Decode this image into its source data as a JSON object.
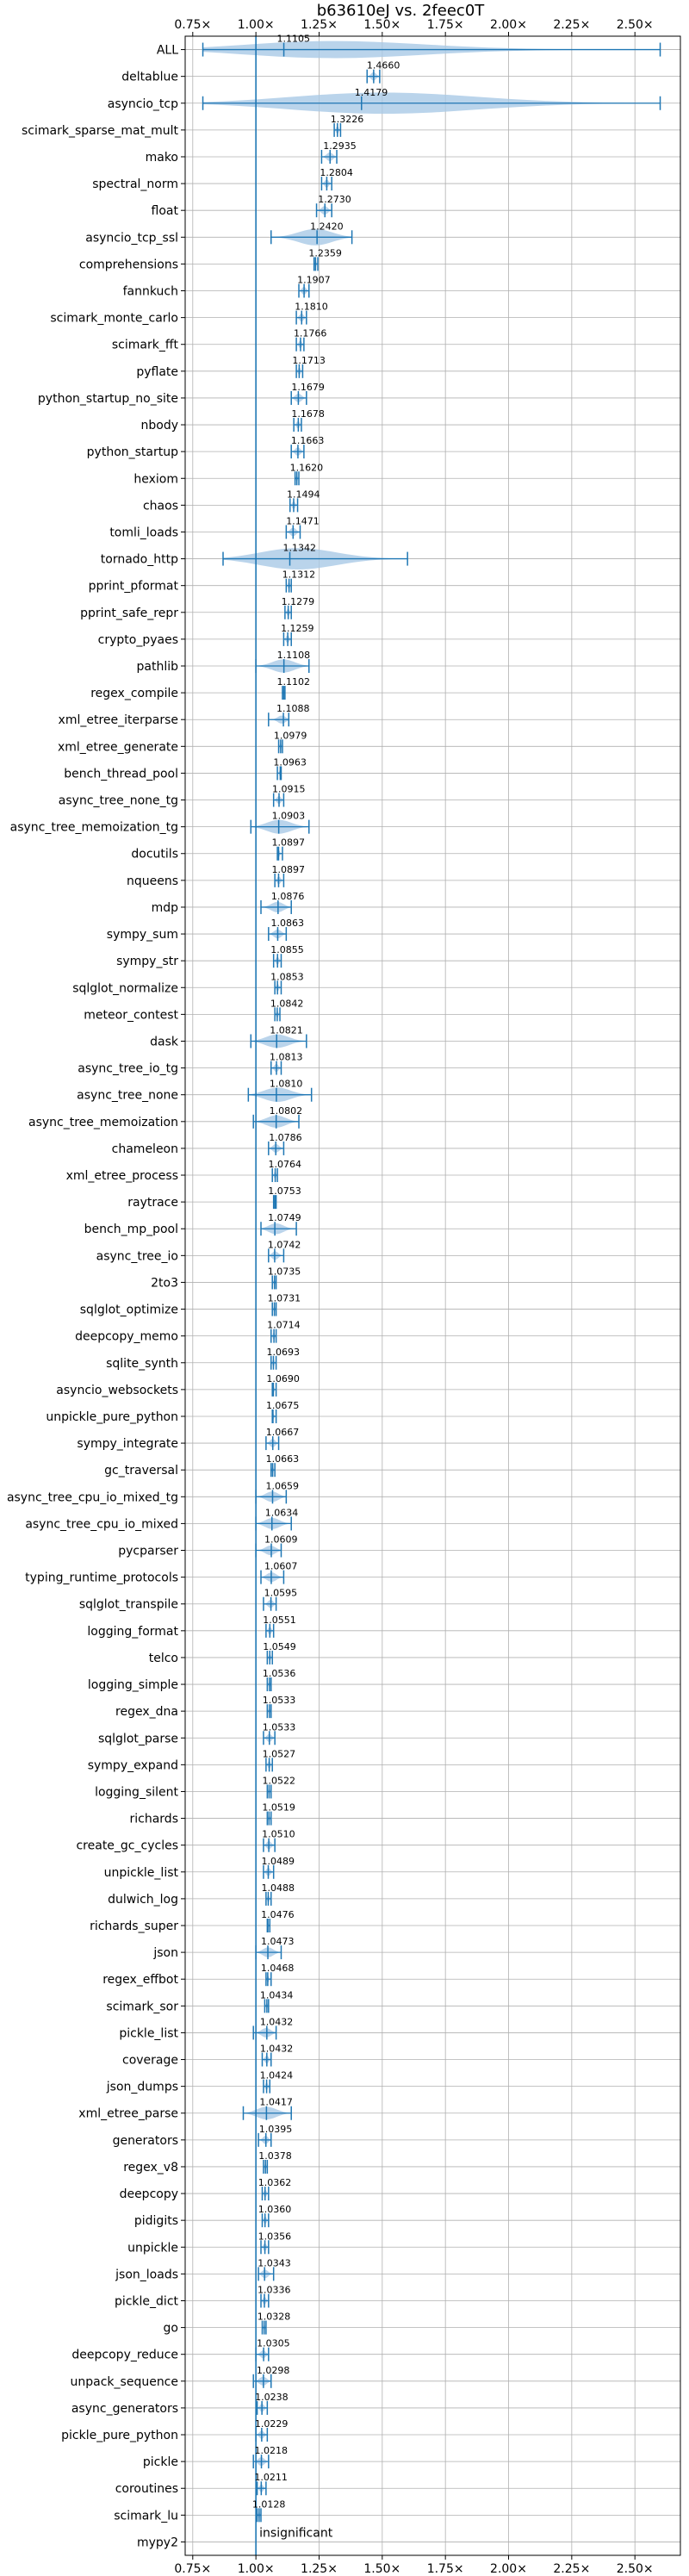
{
  "chart_data": {
    "type": "violin",
    "title": "b63610eJ vs. 2feec0T",
    "xlabel": "",
    "ylabel": "",
    "xlim": [
      0.72,
      2.68
    ],
    "xticks": [
      0.75,
      1.0,
      1.25,
      1.5,
      1.75,
      2.0,
      2.25,
      2.5
    ],
    "xtick_labels": [
      "0.75×",
      "1.00×",
      "1.25×",
      "1.50×",
      "1.75×",
      "2.00×",
      "2.25×",
      "2.50×"
    ],
    "reference_line": 1.0,
    "grid": true,
    "colors": {
      "violin": "#a9c9e6",
      "line": "#1f77b4"
    },
    "categories": [
      "ALL",
      "deltablue",
      "asyncio_tcp",
      "scimark_sparse_mat_mult",
      "mako",
      "spectral_norm",
      "float",
      "asyncio_tcp_ssl",
      "comprehensions",
      "fannkuch",
      "scimark_monte_carlo",
      "scimark_fft",
      "pyflate",
      "python_startup_no_site",
      "nbody",
      "python_startup",
      "hexiom",
      "chaos",
      "tomli_loads",
      "tornado_http",
      "pprint_pformat",
      "pprint_safe_repr",
      "crypto_pyaes",
      "pathlib",
      "regex_compile",
      "xml_etree_iterparse",
      "xml_etree_generate",
      "bench_thread_pool",
      "async_tree_none_tg",
      "async_tree_memoization_tg",
      "docutils",
      "nqueens",
      "mdp",
      "sympy_sum",
      "sympy_str",
      "sqlglot_normalize",
      "meteor_contest",
      "dask",
      "async_tree_io_tg",
      "async_tree_none",
      "async_tree_memoization",
      "chameleon",
      "xml_etree_process",
      "raytrace",
      "bench_mp_pool",
      "async_tree_io",
      "2to3",
      "sqlglot_optimize",
      "deepcopy_memo",
      "sqlite_synth",
      "asyncio_websockets",
      "unpickle_pure_python",
      "sympy_integrate",
      "gc_traversal",
      "async_tree_cpu_io_mixed_tg",
      "async_tree_cpu_io_mixed",
      "pycparser",
      "typing_runtime_protocols",
      "sqlglot_transpile",
      "logging_format",
      "telco",
      "logging_simple",
      "regex_dna",
      "sqlglot_parse",
      "sympy_expand",
      "logging_silent",
      "richards",
      "create_gc_cycles",
      "unpickle_list",
      "dulwich_log",
      "richards_super",
      "json",
      "regex_effbot",
      "scimark_sor",
      "pickle_list",
      "coverage",
      "json_dumps",
      "xml_etree_parse",
      "generators",
      "regex_v8",
      "deepcopy",
      "pidigits",
      "unpickle",
      "json_loads",
      "pickle_dict",
      "go",
      "deepcopy_reduce",
      "unpack_sequence",
      "async_generators",
      "pickle_pure_python",
      "pickle",
      "coroutines",
      "scimark_lu",
      "mypy2"
    ],
    "value_labels": [
      "1.1105",
      "1.4660",
      "1.4179",
      "1.3226",
      "1.2935",
      "1.2804",
      "1.2730",
      "1.2420",
      "1.2359",
      "1.1907",
      "1.1810",
      "1.1766",
      "1.1713",
      "1.1679",
      "1.1678",
      "1.1663",
      "1.1620",
      "1.1494",
      "1.1471",
      "1.1342",
      "1.1312",
      "1.1279",
      "1.1259",
      "1.1108",
      "1.1102",
      "1.1088",
      "1.0979",
      "1.0963",
      "1.0915",
      "1.0903",
      "1.0897",
      "1.0897",
      "1.0876",
      "1.0863",
      "1.0855",
      "1.0853",
      "1.0842",
      "1.0821",
      "1.0813",
      "1.0810",
      "1.0802",
      "1.0786",
      "1.0764",
      "1.0753",
      "1.0749",
      "1.0742",
      "1.0735",
      "1.0731",
      "1.0714",
      "1.0693",
      "1.0690",
      "1.0675",
      "1.0667",
      "1.0663",
      "1.0659",
      "1.0634",
      "1.0609",
      "1.0607",
      "1.0595",
      "1.0551",
      "1.0549",
      "1.0536",
      "1.0533",
      "1.0533",
      "1.0527",
      "1.0522",
      "1.0519",
      "1.0510",
      "1.0489",
      "1.0488",
      "1.0476",
      "1.0473",
      "1.0468",
      "1.0434",
      "1.0432",
      "1.0432",
      "1.0424",
      "1.0417",
      "1.0395",
      "1.0378",
      "1.0362",
      "1.0360",
      "1.0356",
      "1.0343",
      "1.0336",
      "1.0328",
      "1.0305",
      "1.0298",
      "1.0238",
      "1.0229",
      "1.0218",
      "1.0211",
      "1.0128",
      ""
    ],
    "medians": [
      1.1105,
      1.466,
      1.4179,
      1.3226,
      1.2935,
      1.2804,
      1.273,
      1.242,
      1.2359,
      1.1907,
      1.181,
      1.1766,
      1.1713,
      1.1679,
      1.1678,
      1.1663,
      1.162,
      1.1494,
      1.1471,
      1.1342,
      1.1312,
      1.1279,
      1.1259,
      1.1108,
      1.1102,
      1.1088,
      1.0979,
      1.0963,
      1.0915,
      1.0903,
      1.0897,
      1.0897,
      1.0876,
      1.0863,
      1.0855,
      1.0853,
      1.0842,
      1.0821,
      1.0813,
      1.081,
      1.0802,
      1.0786,
      1.0764,
      1.0753,
      1.0749,
      1.0742,
      1.0735,
      1.0731,
      1.0714,
      1.0693,
      1.069,
      1.0675,
      1.0667,
      1.0663,
      1.0659,
      1.0634,
      1.0609,
      1.0607,
      1.0595,
      1.0551,
      1.0549,
      1.0536,
      1.0533,
      1.0533,
      1.0527,
      1.0522,
      1.0519,
      1.051,
      1.0489,
      1.0488,
      1.0476,
      1.0473,
      1.0468,
      1.0434,
      1.0432,
      1.0432,
      1.0424,
      1.0417,
      1.0395,
      1.0378,
      1.0362,
      1.036,
      1.0356,
      1.0343,
      1.0336,
      1.0328,
      1.0305,
      1.0298,
      1.0238,
      1.0229,
      1.0218,
      1.0211,
      1.0128,
      1.0
    ],
    "mins": [
      0.79,
      1.44,
      0.79,
      1.31,
      1.26,
      1.26,
      1.24,
      1.06,
      1.23,
      1.17,
      1.16,
      1.16,
      1.16,
      1.14,
      1.15,
      1.14,
      1.155,
      1.135,
      1.12,
      0.87,
      1.12,
      1.115,
      1.11,
      1.0,
      1.105,
      1.05,
      1.09,
      1.085,
      1.07,
      0.98,
      1.085,
      1.075,
      1.02,
      1.05,
      1.07,
      1.075,
      1.075,
      0.98,
      1.06,
      0.97,
      0.99,
      1.05,
      1.065,
      1.07,
      1.02,
      1.05,
      1.065,
      1.065,
      1.06,
      1.06,
      1.065,
      1.065,
      1.04,
      1.06,
      1.0,
      1.0,
      1.0,
      1.02,
      1.03,
      1.04,
      1.045,
      1.045,
      1.045,
      1.03,
      1.04,
      1.045,
      1.045,
      1.03,
      1.03,
      1.04,
      1.045,
      1.0,
      1.04,
      1.035,
      0.99,
      1.025,
      1.03,
      0.95,
      1.01,
      1.03,
      1.025,
      1.025,
      1.02,
      1.01,
      1.02,
      1.025,
      1.0,
      0.99,
      1.005,
      1.0,
      0.99,
      1.005,
      1.005,
      1.0
    ],
    "maxes": [
      2.6,
      1.49,
      2.6,
      1.335,
      1.32,
      1.3,
      1.3,
      1.38,
      1.245,
      1.21,
      1.2,
      1.19,
      1.185,
      1.2,
      1.18,
      1.19,
      1.17,
      1.165,
      1.175,
      1.6,
      1.14,
      1.14,
      1.14,
      1.21,
      1.115,
      1.13,
      1.105,
      1.1,
      1.11,
      1.21,
      1.105,
      1.11,
      1.14,
      1.12,
      1.1,
      1.1,
      1.095,
      1.2,
      1.1,
      1.22,
      1.17,
      1.11,
      1.085,
      1.08,
      1.16,
      1.11,
      1.08,
      1.08,
      1.08,
      1.08,
      1.08,
      1.08,
      1.09,
      1.075,
      1.12,
      1.14,
      1.1,
      1.11,
      1.08,
      1.07,
      1.065,
      1.06,
      1.06,
      1.075,
      1.065,
      1.06,
      1.06,
      1.075,
      1.07,
      1.06,
      1.055,
      1.1,
      1.06,
      1.05,
      1.08,
      1.06,
      1.055,
      1.14,
      1.06,
      1.045,
      1.05,
      1.05,
      1.05,
      1.07,
      1.05,
      1.04,
      1.05,
      1.06,
      1.045,
      1.045,
      1.05,
      1.04,
      1.02,
      1.0
    ],
    "annotations": [
      {
        "category": "mypy2",
        "text": "insignificant"
      }
    ]
  }
}
